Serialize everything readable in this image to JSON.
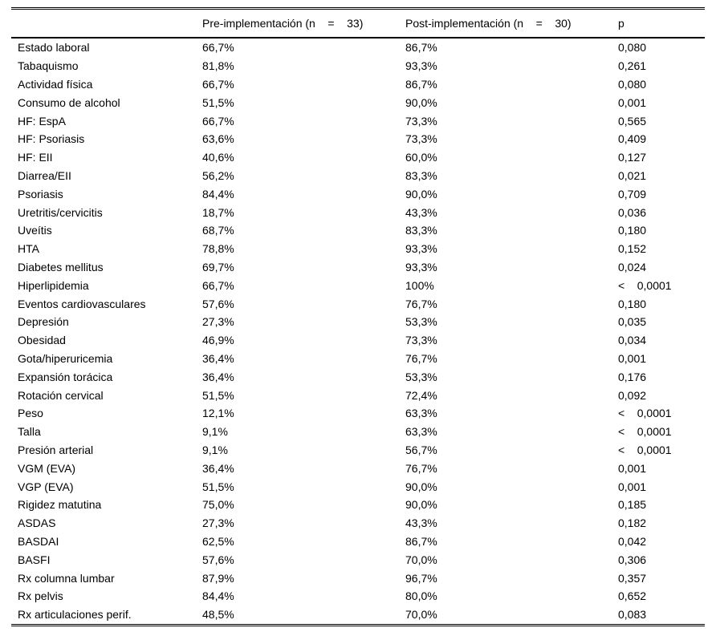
{
  "table": {
    "headers": {
      "label": "",
      "pre": "Pre-implementación (n    =    33)",
      "post": "Post-implementación (n    =    30)",
      "p": "p"
    },
    "rows": [
      {
        "label": "Estado laboral",
        "pre": "66,7%",
        "post": "86,7%",
        "p": "0,080"
      },
      {
        "label": "Tabaquismo",
        "pre": "81,8%",
        "post": "93,3%",
        "p": "0,261"
      },
      {
        "label": "Actividad física",
        "pre": "66,7%",
        "post": "86,7%",
        "p": "0,080"
      },
      {
        "label": "Consumo de alcohol",
        "pre": "51,5%",
        "post": "90,0%",
        "p": "0,001"
      },
      {
        "label": "HF: EspA",
        "pre": "66,7%",
        "post": "73,3%",
        "p": "0,565"
      },
      {
        "label": "HF: Psoriasis",
        "pre": "63,6%",
        "post": "73,3%",
        "p": "0,409"
      },
      {
        "label": "HF: EII",
        "pre": "40,6%",
        "post": "60,0%",
        "p": "0,127"
      },
      {
        "label": "Diarrea/EII",
        "pre": "56,2%",
        "post": "83,3%",
        "p": "0,021"
      },
      {
        "label": "Psoriasis",
        "pre": "84,4%",
        "post": "90,0%",
        "p": "0,709"
      },
      {
        "label": "Uretritis/cervicitis",
        "pre": "18,7%",
        "post": "43,3%",
        "p": "0,036"
      },
      {
        "label": "Uveítis",
        "pre": "68,7%",
        "post": "83,3%",
        "p": "0,180"
      },
      {
        "label": "HTA",
        "pre": "78,8%",
        "post": "93,3%",
        "p": "0,152"
      },
      {
        "label": "Diabetes mellitus",
        "pre": "69,7%",
        "post": "93,3%",
        "p": "0,024"
      },
      {
        "label": "Hiperlipidemia",
        "pre": "66,7%",
        "post": "100%",
        "p": "<    0,0001"
      },
      {
        "label": "Eventos cardiovasculares",
        "pre": "57,6%",
        "post": "76,7%",
        "p": "0,180"
      },
      {
        "label": "Depresión",
        "pre": "27,3%",
        "post": "53,3%",
        "p": "0,035"
      },
      {
        "label": "Obesidad",
        "pre": "46,9%",
        "post": "73,3%",
        "p": "0,034"
      },
      {
        "label": "Gota/hiperuricemia",
        "pre": "36,4%",
        "post": "76,7%",
        "p": "0,001"
      },
      {
        "label": "Expansión torácica",
        "pre": "36,4%",
        "post": "53,3%",
        "p": "0,176"
      },
      {
        "label": "Rotación cervical",
        "pre": "51,5%",
        "post": "72,4%",
        "p": "0,092"
      },
      {
        "label": "Peso",
        "pre": "12,1%",
        "post": "63,3%",
        "p": "<    0,0001"
      },
      {
        "label": "Talla",
        "pre": "9,1%",
        "post": "63,3%",
        "p": "<    0,0001"
      },
      {
        "label": "Presión arterial",
        "pre": "9,1%",
        "post": "56,7%",
        "p": "<    0,0001"
      },
      {
        "label": "VGM (EVA)",
        "pre": "36,4%",
        "post": "76,7%",
        "p": "0,001"
      },
      {
        "label": "VGP (EVA)",
        "pre": "51,5%",
        "post": "90,0%",
        "p": "0,001"
      },
      {
        "label": "Rigidez matutina",
        "pre": "75,0%",
        "post": "90,0%",
        "p": "0,185"
      },
      {
        "label": "ASDAS",
        "pre": "27,3%",
        "post": "43,3%",
        "p": "0,182"
      },
      {
        "label": "BASDAI",
        "pre": "62,5%",
        "post": "86,7%",
        "p": "0,042"
      },
      {
        "label": "BASFI",
        "pre": "57,6%",
        "post": "70,0%",
        "p": "0,306"
      },
      {
        "label": "Rx columna lumbar",
        "pre": "87,9%",
        "post": "96,7%",
        "p": "0,357"
      },
      {
        "label": "Rx pelvis",
        "pre": "84,4%",
        "post": "80,0%",
        "p": "0,652"
      },
      {
        "label": "Rx articulaciones perif.",
        "pre": "48,5%",
        "post": "70,0%",
        "p": "0,083"
      }
    ]
  }
}
